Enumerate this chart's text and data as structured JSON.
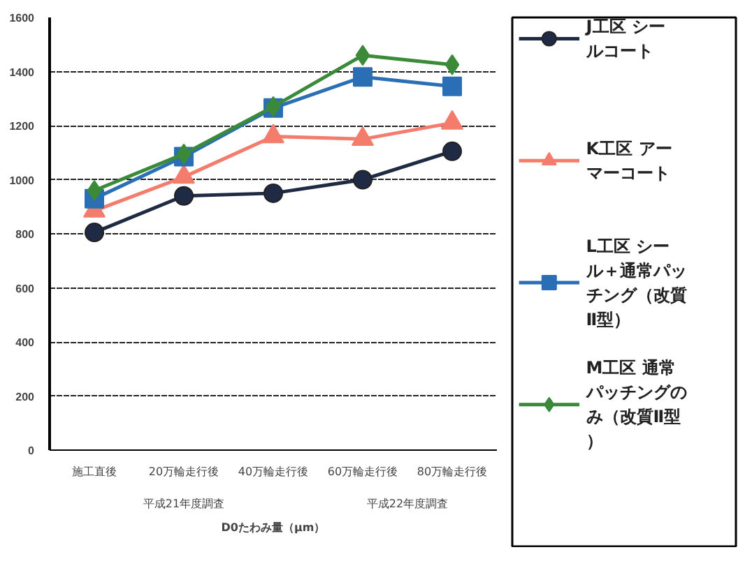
{
  "chart_data": {
    "type": "line",
    "xlabel": "D0たわみ量（μm）",
    "categories": [
      "施工直後",
      "20万輪走行後",
      "40万輪走行後",
      "60万輪走行後",
      "80万輪走行後"
    ],
    "series": [
      {
        "name": "J工区 シールコート",
        "color": "#1f2a44",
        "marker": "circle",
        "values": [
          805,
          940,
          950,
          1000,
          1105
        ]
      },
      {
        "name": "K工区 アーマーコート",
        "color": "#f47c6c",
        "marker": "triangle",
        "values": [
          885,
          1010,
          1160,
          1150,
          1210
        ]
      },
      {
        "name": "L工区 シール＋通常パッチング（改質Ⅱ型）",
        "color": "#2a6fb5",
        "marker": "square",
        "values": [
          930,
          1085,
          1265,
          1380,
          1345
        ]
      },
      {
        "name": "M工区 通常パッチングのみ（改質Ⅱ型）",
        "color": "#3a8a3a",
        "marker": "diamond",
        "values": [
          960,
          1095,
          1270,
          1460,
          1425
        ]
      }
    ],
    "annotations": [
      "平成21年度調査",
      "平成22年度調査"
    ],
    "ylim": [
      0,
      1600
    ],
    "yticks": [
      0,
      200,
      400,
      600,
      800,
      1000,
      1200,
      1400,
      1600
    ],
    "grid": "y",
    "legend": "right",
    "line_style": "solid"
  }
}
